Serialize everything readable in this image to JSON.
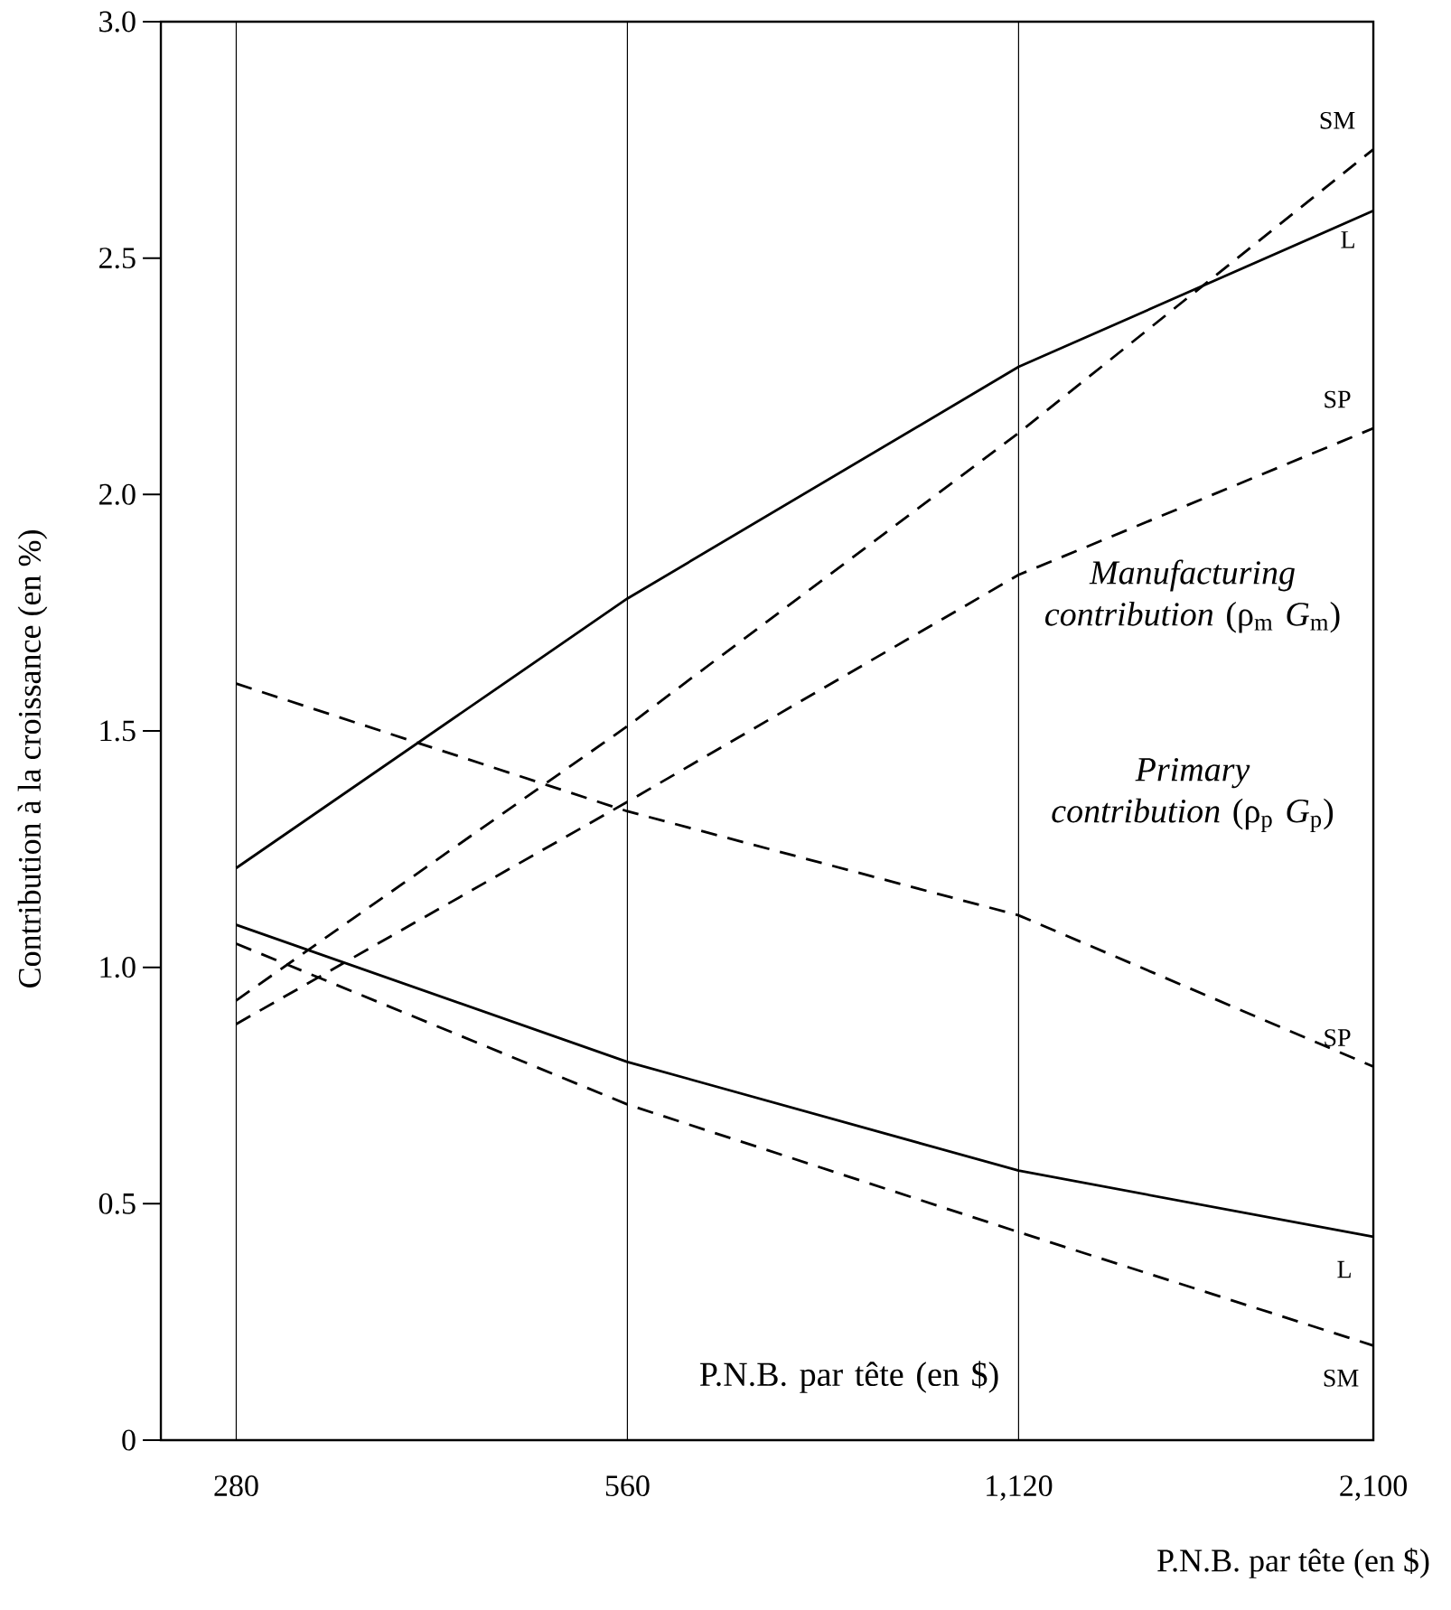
{
  "chart_data": {
    "type": "line",
    "xlabel": "P.N.B. par tête (en $)",
    "ylabel": "Contribution à la croissance (en %)",
    "x": [
      280,
      560,
      1120,
      2100
    ],
    "log": "x",
    "xlim": [
      245,
      2100
    ],
    "xticks": [
      280,
      560,
      {
        "value": 1120,
        "label": "1,120"
      },
      {
        "value": 2100,
        "label": "2,100"
      }
    ],
    "ylim": [
      0,
      3.0
    ],
    "yticks": [
      0,
      {
        "value": 0.5,
        "label": "0.5"
      },
      {
        "value": 1.0,
        "label": "1.0"
      },
      {
        "value": 1.5,
        "label": "1.5"
      },
      {
        "value": 2.0,
        "label": "2.0"
      },
      {
        "value": 2.5,
        "label": "2.5"
      },
      {
        "value": 3.0,
        "label": "3.0"
      }
    ],
    "grid": "x",
    "legend": false,
    "series": [
      {
        "name": "L",
        "color": "#000000",
        "line_style": "solid",
        "values": [
          1.21,
          1.78,
          2.27,
          2.6
        ]
      },
      {
        "name": "SM",
        "color": "#000000",
        "line_style": "dashed",
        "values": [
          0.93,
          1.51,
          2.13,
          2.73
        ]
      },
      {
        "name": "SP",
        "color": "#000000",
        "line_style": "dashed",
        "values": [
          0.88,
          1.35,
          1.83,
          2.14
        ]
      },
      {
        "name": "SP",
        "color": "#000000",
        "line_style": "dashed",
        "values": [
          1.6,
          1.33,
          1.11,
          0.79
        ]
      },
      {
        "name": "L",
        "color": "#000000",
        "line_style": "solid",
        "values": [
          1.09,
          0.8,
          0.57,
          0.43
        ]
      },
      {
        "name": "SM",
        "color": "#000000",
        "line_style": "dashed",
        "values": [
          1.05,
          0.71,
          0.44,
          0.2
        ]
      }
    ],
    "annotations": [
      "*Manufacturing contribution* (ρ$_{m}$ *G*$_{m}$)",
      "*Primary contribution* (ρ$_{p}$ *G*$_{p}$)",
      "P.N.B. par tête (en $)"
    ]
  }
}
